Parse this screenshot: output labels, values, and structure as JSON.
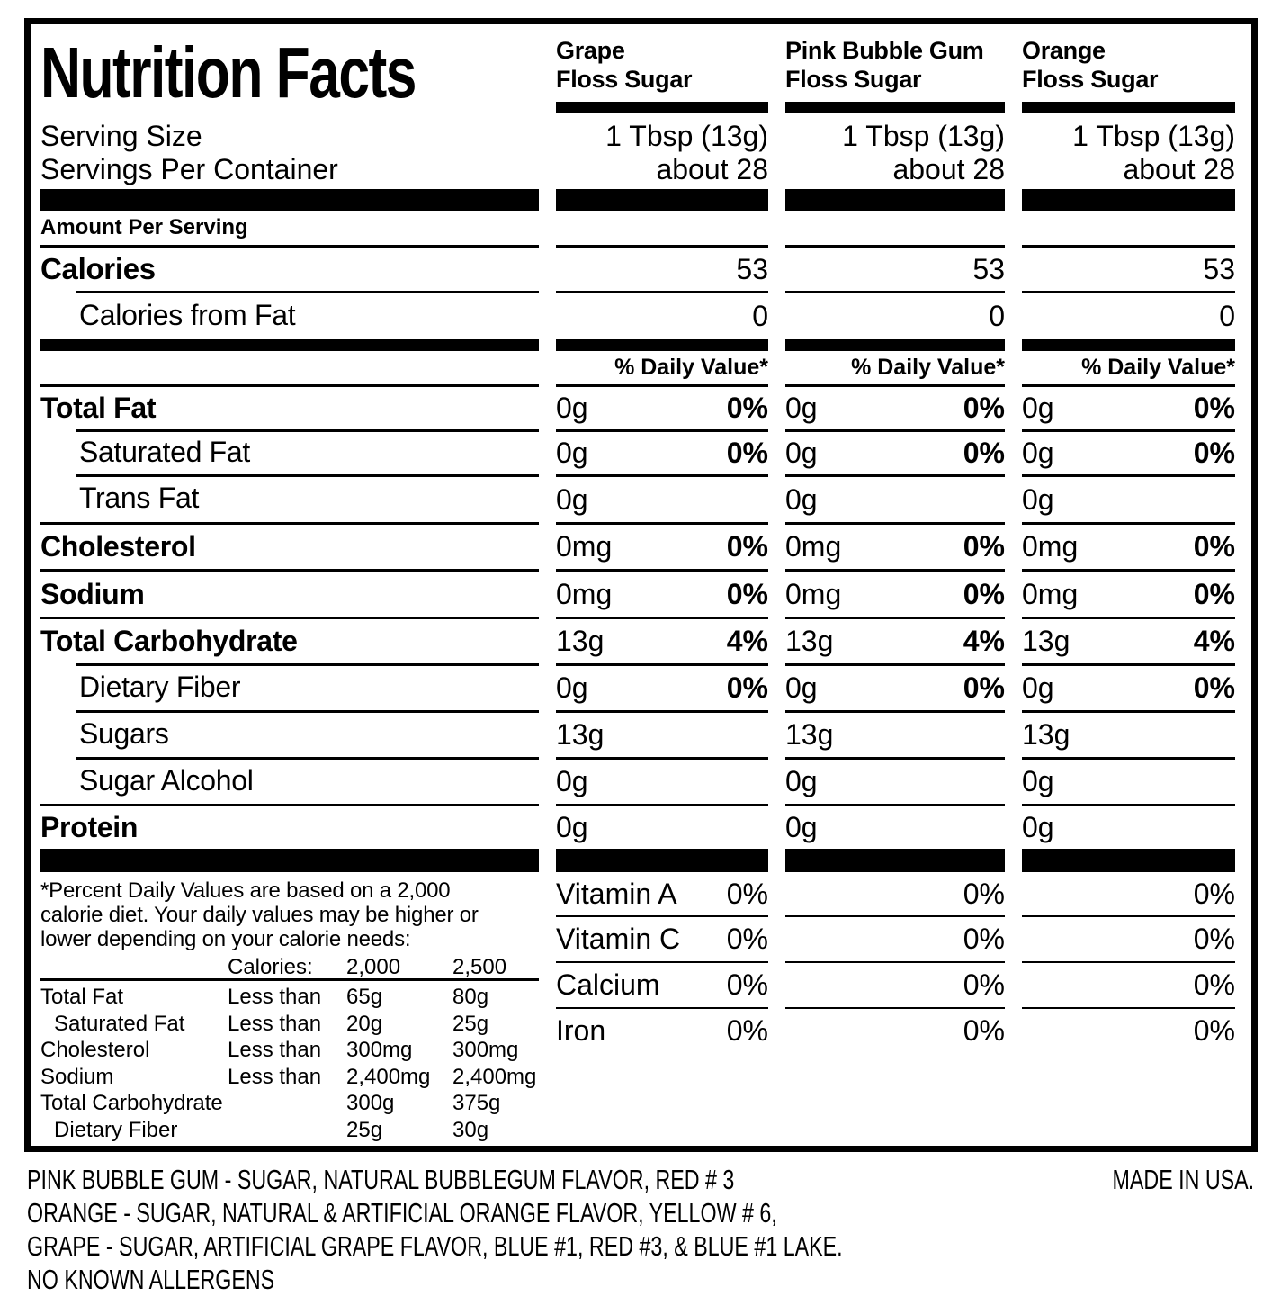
{
  "label": {
    "title": "Nutrition Facts",
    "serving_size_label": "Serving Size",
    "servings_per_container_label": "Servings Per Container",
    "amount_per_serving": "Amount Per Serving",
    "calories_label": "Calories",
    "calories_from_fat_label": "Calories from Fat"
  },
  "products": [
    {
      "name_line1": "Grape",
      "name_line2": "Floss Sugar",
      "serving_size": "1 Tbsp (13g)",
      "servings_per_container": "about 28",
      "calories": "53",
      "calories_from_fat": "0",
      "daily_value_header": "% Daily Value*"
    },
    {
      "name_line1": "Pink Bubble Gum",
      "name_line2": "Floss Sugar",
      "serving_size": "1 Tbsp (13g)",
      "servings_per_container": "about 28",
      "calories": "53",
      "calories_from_fat": "0",
      "daily_value_header": "% Daily Value*"
    },
    {
      "name_line1": "Orange",
      "name_line2": "Floss Sugar",
      "serving_size": "1 Tbsp (13g)",
      "servings_per_container": "about 28",
      "calories": "53",
      "calories_from_fat": "0",
      "daily_value_header": "% Daily Value*"
    }
  ],
  "nutrients": [
    {
      "label": "Total Fat",
      "values": [
        {
          "amount": "0g",
          "dv": "0%"
        },
        {
          "amount": "0g",
          "dv": "0%"
        },
        {
          "amount": "0g",
          "dv": "0%"
        }
      ]
    },
    {
      "label": "Saturated Fat",
      "values": [
        {
          "amount": "0g",
          "dv": "0%"
        },
        {
          "amount": "0g",
          "dv": "0%"
        },
        {
          "amount": "0g",
          "dv": "0%"
        }
      ]
    },
    {
      "label": "Trans Fat",
      "values": [
        {
          "amount": "0g",
          "dv": ""
        },
        {
          "amount": "0g",
          "dv": ""
        },
        {
          "amount": "0g",
          "dv": ""
        }
      ]
    },
    {
      "label": "Cholesterol",
      "values": [
        {
          "amount": "0mg",
          "dv": "0%"
        },
        {
          "amount": "0mg",
          "dv": "0%"
        },
        {
          "amount": "0mg",
          "dv": "0%"
        }
      ]
    },
    {
      "label": "Sodium",
      "values": [
        {
          "amount": "0mg",
          "dv": "0%"
        },
        {
          "amount": "0mg",
          "dv": "0%"
        },
        {
          "amount": "0mg",
          "dv": "0%"
        }
      ]
    },
    {
      "label": "Total Carbohydrate",
      "values": [
        {
          "amount": "13g",
          "dv": "4%"
        },
        {
          "amount": "13g",
          "dv": "4%"
        },
        {
          "amount": "13g",
          "dv": "4%"
        }
      ]
    },
    {
      "label": "Dietary Fiber",
      "values": [
        {
          "amount": "0g",
          "dv": "0%"
        },
        {
          "amount": "0g",
          "dv": "0%"
        },
        {
          "amount": "0g",
          "dv": "0%"
        }
      ]
    },
    {
      "label": "Sugars",
      "values": [
        {
          "amount": "13g",
          "dv": ""
        },
        {
          "amount": "13g",
          "dv": ""
        },
        {
          "amount": "13g",
          "dv": ""
        }
      ]
    },
    {
      "label": "Sugar Alcohol",
      "values": [
        {
          "amount": "0g",
          "dv": ""
        },
        {
          "amount": "0g",
          "dv": ""
        },
        {
          "amount": "0g",
          "dv": ""
        }
      ]
    },
    {
      "label": "Protein",
      "values": [
        {
          "amount": "0g",
          "dv": ""
        },
        {
          "amount": "0g",
          "dv": ""
        },
        {
          "amount": "0g",
          "dv": ""
        }
      ]
    }
  ],
  "vitamins": [
    {
      "label": "Vitamin A",
      "values": [
        "0%",
        "0%",
        "0%"
      ]
    },
    {
      "label": "Vitamin C",
      "values": [
        "0%",
        "0%",
        "0%"
      ]
    },
    {
      "label": "Calcium",
      "values": [
        "0%",
        "0%",
        "0%"
      ]
    },
    {
      "label": "Iron",
      "values": [
        "0%",
        "0%",
        "0%"
      ]
    }
  ],
  "footnote": {
    "lines": [
      "*Percent Daily Values are based on a 2,000",
      "calorie diet. Your daily values may be higher or",
      "lower depending on your calorie needs:"
    ],
    "table": {
      "calories_label": "Calories:",
      "col_2000": "2,000",
      "col_2500": "2,500",
      "rows": [
        {
          "label": "Total Fat",
          "qualifier": "Less than",
          "v1": "65g",
          "v2": "80g"
        },
        {
          "label": "Saturated Fat",
          "qualifier": "Less than",
          "v1": "20g",
          "v2": "25g"
        },
        {
          "label": "Cholesterol",
          "qualifier": "Less than",
          "v1": "300mg",
          "v2": "300mg"
        },
        {
          "label": "Sodium",
          "qualifier": "Less than",
          "v1": "2,400mg",
          "v2": "2,400mg"
        },
        {
          "label": "Total Carbohydrate",
          "qualifier": "",
          "v1": "300g",
          "v2": "375g"
        },
        {
          "label": "Dietary Fiber",
          "qualifier": "",
          "v1": "25g",
          "v2": "30g"
        }
      ]
    }
  },
  "ingredients": {
    "lines": [
      "PINK BUBBLE GUM - SUGAR, NATURAL BUBBLEGUM FLAVOR, RED # 3",
      "ORANGE - SUGAR, NATURAL & ARTIFICIAL ORANGE FLAVOR, YELLOW # 6,",
      "GRAPE - SUGAR, ARTIFICIAL GRAPE FLAVOR, BLUE #1, RED #3, & BLUE #1 LAKE.",
      "NO KNOWN ALLERGENS"
    ],
    "made_in": "MADE IN USA."
  },
  "colors": {
    "ink": "#000000",
    "paper": "#ffffff"
  }
}
